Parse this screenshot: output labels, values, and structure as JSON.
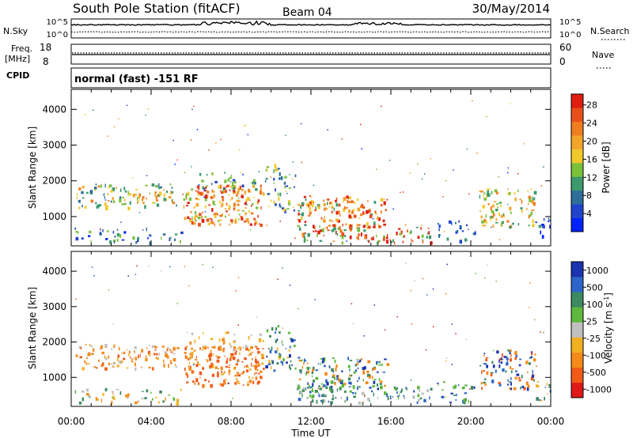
{
  "header": {
    "title": "South Pole Station (fitACF)",
    "beam": "Beam 04",
    "date": "30/May/2014"
  },
  "status_panels": {
    "nsky_label": "N.Sky",
    "nsky_ticks": [
      "10^5",
      "10^0"
    ],
    "nsearch_label": "N.Search",
    "nsearch_ticks": [
      "10^5",
      "10^0"
    ],
    "freq_label": "Freq.",
    "freq_unit": "[MHz]",
    "freq_ticks": [
      "18",
      "8"
    ],
    "nave_label": "Nave",
    "nave_ticks": [
      "60",
      "0"
    ],
    "cpid_label": "CPID",
    "cpid_text": "normal (fast) -151 RF"
  },
  "chart_data": [
    {
      "type": "heatmap",
      "name": "power",
      "ylabel": "Slant Range [km]",
      "ylim": [
        180,
        4560
      ],
      "yticks": [
        "1000",
        "2000",
        "3000",
        "4000"
      ],
      "colorbar_label": "Power [dB]",
      "colorbar_ticks": [
        "4",
        "8",
        "12",
        "16",
        "20",
        "24",
        "28"
      ],
      "colors": [
        "#0022ff",
        "#2244cc",
        "#2f6e99",
        "#3c9a6e",
        "#7ac13a",
        "#f0c82a",
        "#f2a52a",
        "#f07d1e",
        "#e8501a",
        "#e01e10"
      ]
    },
    {
      "type": "heatmap",
      "name": "velocity",
      "ylabel": "Slant Range [km]",
      "ylim": [
        180,
        4560
      ],
      "yticks": [
        "1000",
        "2000",
        "3000",
        "4000"
      ],
      "xlabel": "Time UT",
      "xticks": [
        "00:00",
        "04:00",
        "08:00",
        "12:00",
        "16:00",
        "20:00",
        "00:00"
      ],
      "colorbar_label": "Velocity [m s^-1]",
      "colorbar_ticks": [
        "1000",
        "500",
        "100",
        "25",
        "-25",
        "-100",
        "-500",
        "-1000"
      ],
      "colors": [
        "#1a33b0",
        "#2d66c8",
        "#3d8a60",
        "#5fb83e",
        "#c0c0c0",
        "#f0b020",
        "#f58a18",
        "#f25a18",
        "#e01818"
      ]
    }
  ]
}
